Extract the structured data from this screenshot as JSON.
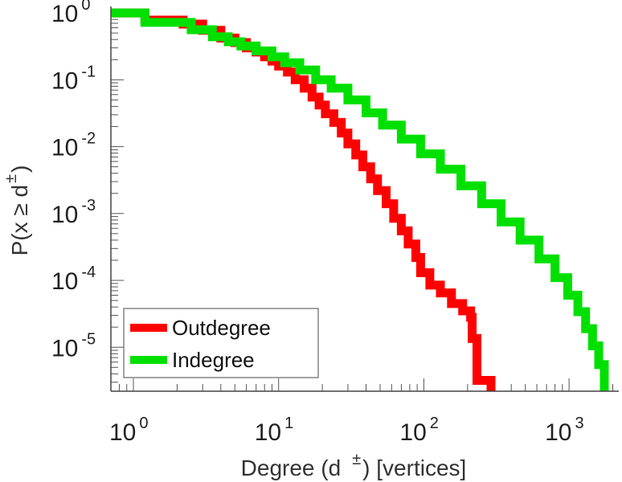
{
  "chart_data": {
    "type": "line",
    "scale": {
      "x": "log",
      "y": "log"
    },
    "step": true,
    "xlabel": "Degree (d ±) [vertices]",
    "xlabel_parts": {
      "pre": "Degree (d",
      "sup": "±",
      "post": ") [vertices]"
    },
    "ylabel": "P(x ≥ d±)",
    "ylabel_parts": {
      "pre": "P(x ≥ d",
      "sup": "±",
      "post": ")"
    },
    "xlim": [
      0.7,
      2200
    ],
    "ylim": [
      2.2e-06,
      1.25
    ],
    "x_ticks": [
      {
        "value": 1,
        "base": "10",
        "exp": "0"
      },
      {
        "value": 10,
        "base": "10",
        "exp": "1"
      },
      {
        "value": 100,
        "base": "10",
        "exp": "2"
      },
      {
        "value": 1000,
        "base": "10",
        "exp": "3"
      }
    ],
    "y_ticks": [
      {
        "value": 1,
        "base": "10",
        "exp": "0"
      },
      {
        "value": 0.1,
        "base": "10",
        "exp": "-1"
      },
      {
        "value": 0.01,
        "base": "10",
        "exp": "-2"
      },
      {
        "value": 0.001,
        "base": "10",
        "exp": "-3"
      },
      {
        "value": 0.0001,
        "base": "10",
        "exp": "-4"
      },
      {
        "value": 1e-05,
        "base": "10",
        "exp": "-5"
      }
    ],
    "legend_position": "bottom-left",
    "series": [
      {
        "name": "Outdegree",
        "color": "#ff0000",
        "points": [
          [
            0.7,
            1.0
          ],
          [
            1.2,
            1.0
          ],
          [
            1.2,
            0.78
          ],
          [
            2.2,
            0.78
          ],
          [
            2.2,
            0.68
          ],
          [
            3.0,
            0.68
          ],
          [
            3.0,
            0.55
          ],
          [
            4.0,
            0.55
          ],
          [
            4.0,
            0.42
          ],
          [
            5.0,
            0.42
          ],
          [
            5.0,
            0.36
          ],
          [
            6.0,
            0.36
          ],
          [
            6.0,
            0.3
          ],
          [
            7.0,
            0.3
          ],
          [
            7.0,
            0.26
          ],
          [
            8.0,
            0.26
          ],
          [
            8.0,
            0.22
          ],
          [
            9.0,
            0.22
          ],
          [
            9.0,
            0.19
          ],
          [
            10,
            0.19
          ],
          [
            10,
            0.16
          ],
          [
            11.5,
            0.16
          ],
          [
            11.5,
            0.13
          ],
          [
            13,
            0.13
          ],
          [
            13,
            0.1
          ],
          [
            15,
            0.1
          ],
          [
            15,
            0.075
          ],
          [
            17,
            0.075
          ],
          [
            17,
            0.055
          ],
          [
            19,
            0.055
          ],
          [
            19,
            0.042
          ],
          [
            21,
            0.042
          ],
          [
            21,
            0.031
          ],
          [
            24,
            0.031
          ],
          [
            24,
            0.023
          ],
          [
            27,
            0.023
          ],
          [
            27,
            0.016
          ],
          [
            30,
            0.016
          ],
          [
            30,
            0.011
          ],
          [
            34,
            0.011
          ],
          [
            34,
            0.0075
          ],
          [
            38,
            0.0075
          ],
          [
            38,
            0.005
          ],
          [
            43,
            0.005
          ],
          [
            43,
            0.0033
          ],
          [
            48,
            0.0033
          ],
          [
            48,
            0.0022
          ],
          [
            55,
            0.0022
          ],
          [
            55,
            0.0014
          ],
          [
            62,
            0.0014
          ],
          [
            62,
            0.00085
          ],
          [
            70,
            0.00085
          ],
          [
            70,
            0.00055
          ],
          [
            78,
            0.00055
          ],
          [
            78,
            0.00035
          ],
          [
            88,
            0.00035
          ],
          [
            88,
            0.00022
          ],
          [
            95,
            0.00022
          ],
          [
            95,
            0.00013
          ],
          [
            110,
            0.00013
          ],
          [
            110,
            8.5e-05
          ],
          [
            130,
            8.5e-05
          ],
          [
            130,
            6.5e-05
          ],
          [
            155,
            6.5e-05
          ],
          [
            155,
            4.5e-05
          ],
          [
            185,
            4.5e-05
          ],
          [
            185,
            3.5e-05
          ],
          [
            210,
            3.5e-05
          ],
          [
            210,
            2.8e-05
          ],
          [
            215,
            2.8e-05
          ],
          [
            215,
            1.35e-05
          ],
          [
            232,
            1.35e-05
          ],
          [
            232,
            3.2e-06
          ],
          [
            290,
            3.2e-06
          ],
          [
            290,
            2.2e-06
          ]
        ]
      },
      {
        "name": "Indegree",
        "color": "#00e000",
        "points": [
          [
            0.7,
            1.0
          ],
          [
            1.2,
            1.0
          ],
          [
            1.2,
            0.72
          ],
          [
            2.5,
            0.72
          ],
          [
            2.5,
            0.56
          ],
          [
            3.5,
            0.56
          ],
          [
            3.5,
            0.44
          ],
          [
            4.5,
            0.44
          ],
          [
            4.5,
            0.37
          ],
          [
            5.5,
            0.37
          ],
          [
            5.5,
            0.32
          ],
          [
            7,
            0.32
          ],
          [
            7,
            0.27
          ],
          [
            9,
            0.27
          ],
          [
            9,
            0.22
          ],
          [
            11,
            0.22
          ],
          [
            11,
            0.18
          ],
          [
            14,
            0.18
          ],
          [
            14,
            0.14
          ],
          [
            18,
            0.14
          ],
          [
            18,
            0.1
          ],
          [
            23,
            0.1
          ],
          [
            23,
            0.075
          ],
          [
            30,
            0.075
          ],
          [
            30,
            0.05
          ],
          [
            40,
            0.05
          ],
          [
            40,
            0.032
          ],
          [
            52,
            0.032
          ],
          [
            52,
            0.021
          ],
          [
            70,
            0.021
          ],
          [
            70,
            0.013
          ],
          [
            95,
            0.013
          ],
          [
            95,
            0.0078
          ],
          [
            130,
            0.0078
          ],
          [
            130,
            0.0046
          ],
          [
            180,
            0.0046
          ],
          [
            180,
            0.0026
          ],
          [
            250,
            0.0026
          ],
          [
            250,
            0.0014
          ],
          [
            340,
            0.0014
          ],
          [
            340,
            0.00075
          ],
          [
            460,
            0.00075
          ],
          [
            460,
            0.0004
          ],
          [
            620,
            0.0004
          ],
          [
            620,
            0.00021
          ],
          [
            800,
            0.00021
          ],
          [
            800,
            0.00011
          ],
          [
            980,
            0.00011
          ],
          [
            980,
            6e-05
          ],
          [
            1150,
            6e-05
          ],
          [
            1150,
            3.4e-05
          ],
          [
            1300,
            3.4e-05
          ],
          [
            1300,
            1.9e-05
          ],
          [
            1450,
            1.9e-05
          ],
          [
            1450,
            1.05e-05
          ],
          [
            1600,
            1.05e-05
          ],
          [
            1600,
            5.5e-06
          ],
          [
            1750,
            5.5e-06
          ],
          [
            1750,
            2.2e-06
          ]
        ]
      }
    ]
  }
}
